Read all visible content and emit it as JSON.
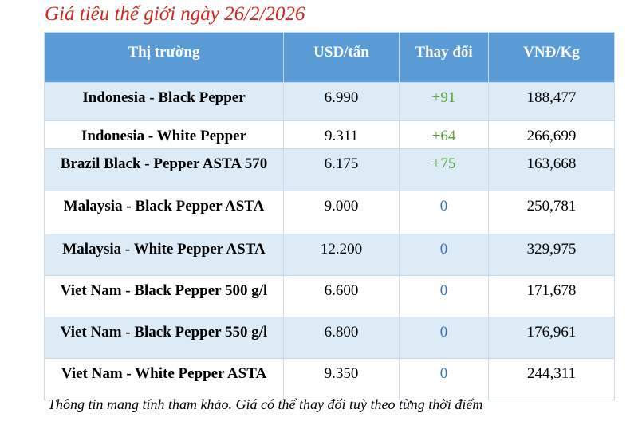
{
  "title": "Giá tiêu thế giới ngày 26/2/2026",
  "table": {
    "header": [
      "Thị trường",
      "USD/tấn",
      "Thay đổi",
      "VNĐ/Kg"
    ],
    "rows": [
      [
        "Indonesia - Black Pepper",
        "6.990",
        "+91",
        "188,477"
      ],
      [
        "Indonesia - White Pepper",
        "9.311",
        "+64",
        "266,699"
      ],
      [
        "Brazil Black - Pepper ASTA 570",
        "6.175",
        "+75",
        "163,668"
      ],
      [
        "Malaysia - Black Pepper ASTA",
        "9.000",
        "0",
        "250,781"
      ],
      [
        "Malaysia - White Pepper ASTA",
        "12.200",
        "0",
        "329,975"
      ],
      [
        "Viet Nam - Black Pepper 500 g/l",
        "6.600",
        "0",
        "171,678"
      ],
      [
        "Viet Nam - Black Pepper 550 g/l",
        "6.800",
        "0",
        "176,961"
      ],
      [
        "Viet Nam - White Pepper ASTA",
        "9.350",
        "0",
        "244,311"
      ]
    ]
  },
  "note": "Thông tin mang tính tham khảo. Giá có thể thay đổi tuỳ theo từng thời điểm"
}
